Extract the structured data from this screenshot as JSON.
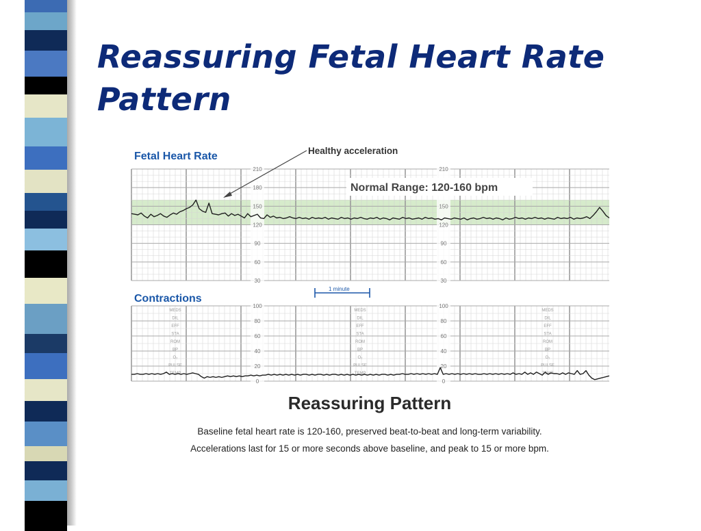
{
  "slide": {
    "title_line1": "Reassuring Fetal Heart Rate",
    "title_line2": "Pattern"
  },
  "figure": {
    "fhr_label": "Fetal Heart Rate",
    "contractions_label": "Contractions",
    "acceleration_annotation": "Healthy acceleration",
    "normal_range_label": "Normal Range: 120-160 bpm",
    "one_minute_label": "1 minute",
    "caption_title": "Reassuring Pattern",
    "caption_line1": "Baseline fetal heart rate is 120-160, preserved beat-to-beat and long-term variability.",
    "caption_line2": "Accelerations last for 15 or more seconds above baseline, and peak to 15 or more bpm.",
    "fhr_axis_ticks": [
      "210",
      "180",
      "150",
      "120",
      "90",
      "60",
      "30"
    ],
    "uc_axis_ticks": [
      "100",
      "80",
      "60",
      "40",
      "20",
      "0"
    ],
    "vertical_stamp": [
      "MEDS",
      "DIL",
      "EFF",
      "STA",
      "ROM",
      "BP",
      "O₂",
      "PULSE",
      "TEMP"
    ]
  },
  "chart_data": [
    {
      "type": "line",
      "title": "Fetal Heart Rate",
      "y_unit": "bpm",
      "ylim": [
        30,
        210
      ],
      "y_ticks": [
        210,
        180,
        150,
        120,
        90,
        60,
        30
      ],
      "shaded_band": {
        "from": 120,
        "to": 160,
        "label": "Normal Range: 120-160 bpm"
      },
      "annotation": "Healthy acceleration",
      "series": [
        {
          "y": [
            138,
            137,
            136,
            139,
            134,
            131,
            137,
            133,
            135,
            138,
            134,
            132,
            136,
            139,
            137,
            141,
            143,
            146,
            148,
            152,
            160,
            146,
            142,
            140,
            155,
            138,
            137,
            136,
            138,
            139,
            134,
            138,
            135,
            137,
            134,
            131,
            138,
            133,
            135,
            137,
            131,
            130,
            136,
            132,
            134,
            131,
            132,
            130,
            131,
            133,
            131,
            130,
            132,
            130,
            131,
            129,
            132,
            130,
            131,
            130,
            132,
            129,
            131,
            130,
            129,
            132,
            130,
            131,
            129,
            131,
            130,
            132,
            130,
            129,
            131,
            130,
            132,
            129,
            131,
            130,
            128,
            131,
            130,
            129,
            132,
            130,
            131,
            129,
            130,
            131,
            129,
            132,
            130,
            131,
            129,
            130,
            128,
            131,
            130,
            129,
            131,
            130,
            129,
            131,
            128,
            130,
            131,
            129,
            130,
            132,
            130,
            131,
            129,
            131,
            130,
            128,
            131,
            129,
            130,
            132,
            130,
            131,
            129,
            131,
            130,
            132,
            130,
            131,
            129,
            131,
            130,
            129,
            132,
            130,
            131,
            130,
            132,
            129,
            131,
            130,
            131,
            133,
            130,
            135,
            141,
            148,
            142,
            135,
            131
          ]
        }
      ]
    },
    {
      "type": "line",
      "title": "Contractions",
      "ylim": [
        0,
        100
      ],
      "y_ticks": [
        100,
        80,
        60,
        40,
        20,
        0
      ],
      "series": [
        {
          "y": [
            9,
            9,
            10,
            9,
            9,
            10,
            9,
            10,
            9,
            10,
            9,
            10,
            12,
            9,
            10,
            9,
            10,
            9,
            10,
            9,
            10,
            11,
            10,
            9,
            6,
            4,
            6,
            5,
            6,
            5,
            6,
            5,
            6,
            7,
            6,
            7,
            6,
            7,
            6,
            7,
            7,
            8,
            7,
            8,
            7,
            8,
            8,
            9,
            8,
            9,
            8,
            9,
            8,
            9,
            8,
            9,
            8,
            9,
            8,
            9,
            9,
            8,
            9,
            8,
            9,
            9,
            8,
            9,
            8,
            9,
            9,
            8,
            9,
            8,
            9,
            8,
            9,
            8,
            9,
            8,
            9,
            8,
            9,
            8,
            9,
            8,
            9,
            9,
            8,
            9,
            8,
            9,
            9,
            10,
            9,
            9,
            10,
            9,
            10,
            9,
            10,
            9,
            10,
            9,
            10,
            9,
            18,
            9,
            10,
            9,
            10,
            9,
            10,
            9,
            10,
            9,
            10,
            9,
            10,
            9,
            9,
            10,
            9,
            10,
            9,
            10,
            9,
            10,
            9,
            10,
            9,
            11,
            9,
            10,
            9,
            12,
            9,
            11,
            9,
            12,
            10,
            8,
            12,
            9,
            11,
            10,
            10,
            9,
            11,
            9,
            11,
            10,
            9,
            14,
            9,
            10,
            14,
            8,
            4,
            2,
            3,
            4,
            5,
            6,
            7
          ]
        }
      ]
    }
  ]
}
